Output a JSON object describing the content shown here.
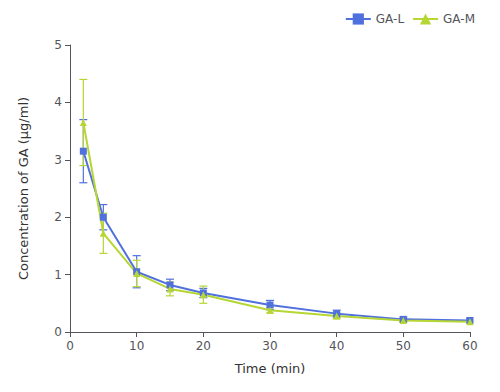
{
  "chart_data": {
    "type": "line",
    "xlabel": "Time (min)",
    "ylabel": "Concentration of GA (μg/ml)",
    "x": [
      2,
      5,
      10,
      15,
      20,
      30,
      40,
      50,
      60
    ],
    "series": [
      {
        "name": "GA-L",
        "marker": "square",
        "values": [
          3.15,
          2.0,
          1.05,
          0.82,
          0.68,
          0.47,
          0.32,
          0.22,
          0.2
        ],
        "yerr": [
          0.55,
          0.22,
          0.28,
          0.1,
          0.08,
          0.08,
          0.06,
          0.04,
          0.04
        ]
      },
      {
        "name": "GA-M",
        "marker": "triangle",
        "values": [
          3.65,
          1.72,
          1.02,
          0.75,
          0.65,
          0.38,
          0.28,
          0.2,
          0.18
        ],
        "yerr": [
          0.75,
          0.35,
          0.23,
          0.12,
          0.15,
          0.05,
          0.05,
          0.03,
          0.03
        ]
      }
    ],
    "xlim": [
      0,
      60
    ],
    "xticks": [
      0,
      10,
      20,
      30,
      40,
      50,
      60
    ],
    "ylim": [
      0,
      5
    ],
    "yticks": [
      0,
      1,
      2,
      3,
      4,
      5
    ],
    "grid": false,
    "legend": "upper right"
  }
}
